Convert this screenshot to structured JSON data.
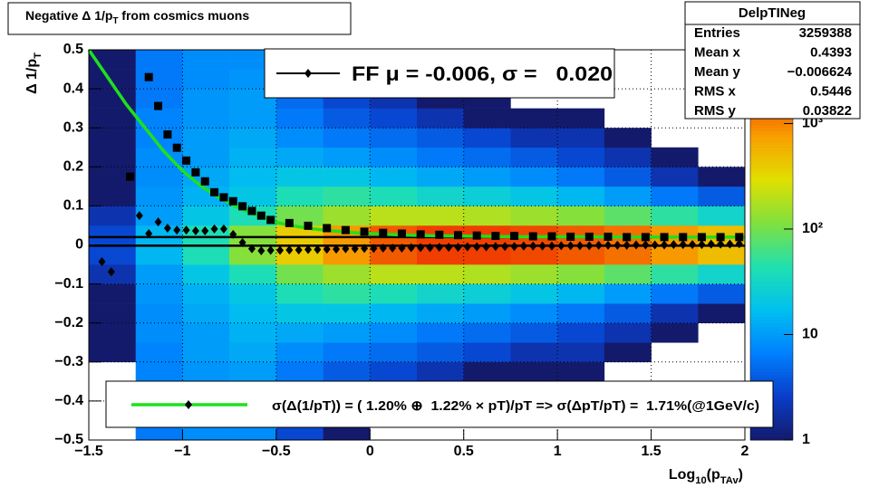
{
  "chart_data": {
    "type": "hist2d",
    "title_parts": [
      {
        "text": "Negative Δ 1/p"
      },
      {
        "text": "T",
        "style": "sub"
      },
      {
        "text": " from cosmics muons"
      }
    ],
    "xlabel_parts": [
      {
        "text": "Log"
      },
      {
        "text": "10",
        "style": "sub"
      },
      {
        "text": "(p"
      },
      {
        "text": "TAv",
        "style": "sub"
      },
      {
        "text": ")"
      }
    ],
    "ylabel_parts": [
      {
        "text": "Δ 1/p"
      },
      {
        "text": "T",
        "style": "sub"
      }
    ],
    "xlim": [
      -1.5,
      2
    ],
    "ylim": [
      -0.5,
      0.5
    ],
    "xticks": [
      {
        "value": -1.5,
        "label": "−1.5"
      },
      {
        "value": -1,
        "label": "−1"
      },
      {
        "value": -0.5,
        "label": "−0.5"
      },
      0,
      0.5,
      1,
      1.5,
      2
    ],
    "yticks": [
      {
        "value": -0.5,
        "label": "−0.5"
      },
      {
        "value": -0.4,
        "label": "−0.4"
      },
      {
        "value": -0.3,
        "label": "−0.3"
      },
      {
        "value": -0.2,
        "label": "−0.2"
      },
      {
        "value": -0.1,
        "label": "−0.1"
      },
      0,
      0.1,
      0.2,
      0.3,
      0.4,
      0.5
    ],
    "grid": true,
    "x_bins": [
      -1.5,
      -1.25,
      -1,
      -0.75,
      -0.5,
      -0.25,
      0,
      0.25,
      0.5,
      0.75,
      1,
      1.25,
      1.5,
      1.75,
      2
    ],
    "y_bins": [
      -0.5,
      -0.45,
      -0.4,
      -0.35,
      -0.3,
      -0.25,
      -0.2,
      -0.15,
      -0.1,
      -0.05,
      0,
      0.05,
      0.1,
      0.15,
      0.2,
      0.25,
      0.3,
      0.35,
      0.4,
      0.45,
      0.5
    ],
    "counts": [
      [
        0,
        0,
        0,
        0,
        1,
        1,
        1,
        1,
        2,
        3,
        3,
        2,
        1,
        1,
        1,
        1,
        1,
        1,
        1,
        1
      ],
      [
        6,
        6,
        6,
        7,
        7,
        8,
        8,
        9,
        10,
        15,
        15,
        10,
        9,
        8,
        8,
        7,
        7,
        6,
        6,
        6
      ],
      [
        8,
        8,
        9,
        9,
        10,
        10,
        12,
        14,
        20,
        40,
        40,
        20,
        14,
        12,
        10,
        10,
        9,
        9,
        8,
        8
      ],
      [
        8,
        9,
        10,
        10,
        12,
        14,
        16,
        20,
        40,
        120,
        120,
        40,
        20,
        16,
        14,
        12,
        10,
        10,
        9,
        8
      ],
      [
        3,
        4,
        5,
        6,
        8,
        12,
        20,
        40,
        100,
        400,
        400,
        100,
        40,
        20,
        12,
        8,
        6,
        5,
        4,
        3
      ],
      [
        1,
        2,
        3,
        4,
        6,
        10,
        20,
        50,
        150,
        800,
        800,
        150,
        50,
        20,
        10,
        6,
        4,
        3,
        2,
        1
      ],
      [
        0,
        1,
        2,
        3,
        5,
        8,
        15,
        40,
        200,
        1500,
        1500,
        200,
        40,
        15,
        8,
        5,
        3,
        2,
        1,
        0
      ],
      [
        0,
        0,
        1,
        2,
        4,
        6,
        12,
        30,
        200,
        2000,
        2000,
        200,
        30,
        12,
        6,
        4,
        2,
        1,
        0,
        0
      ],
      [
        0,
        0,
        1,
        1,
        3,
        5,
        10,
        25,
        180,
        2000,
        2000,
        180,
        25,
        10,
        5,
        3,
        1,
        1,
        0,
        0
      ],
      [
        0,
        0,
        0,
        1,
        2,
        4,
        8,
        20,
        150,
        1800,
        1800,
        150,
        20,
        8,
        4,
        2,
        1,
        0,
        0,
        0
      ],
      [
        0,
        0,
        0,
        1,
        2,
        3,
        6,
        15,
        120,
        1500,
        1500,
        120,
        15,
        6,
        3,
        2,
        1,
        0,
        0,
        0
      ],
      [
        0,
        0,
        0,
        0,
        1,
        2,
        4,
        10,
        80,
        1200,
        1200,
        80,
        10,
        4,
        2,
        1,
        0,
        0,
        0,
        0
      ],
      [
        0,
        0,
        0,
        0,
        0,
        1,
        2,
        6,
        50,
        800,
        800,
        50,
        6,
        2,
        1,
        0,
        0,
        0,
        0,
        0
      ],
      [
        0,
        0,
        0,
        0,
        0,
        0,
        1,
        4,
        30,
        500,
        500,
        30,
        4,
        1,
        0,
        0,
        0,
        0,
        0,
        0
      ]
    ],
    "zlim": [
      1,
      5000
    ],
    "log_z": true,
    "zticks": [
      1,
      10,
      {
        "value": 100,
        "label": "10²"
      },
      {
        "value": 1000,
        "label": "10³"
      }
    ],
    "palette": [
      "#141a6b",
      "#0a3cc8",
      "#0080ff",
      "#00c0f0",
      "#20e0b0",
      "#80e040",
      "#e0e000",
      "#f8a000",
      "#f04000",
      "#c80000"
    ],
    "hlines": {
      "values": [
        0.02,
        -0.002
      ],
      "color": "#000000"
    },
    "series": [
      {
        "name": "FF μ = -0.006, σ =   0.020",
        "marker": "diamond",
        "color": "#000000",
        "x": [
          -1.43,
          -1.38,
          -1.28,
          -1.23,
          -1.18,
          -1.13,
          -1.08,
          -1.03,
          -0.98,
          -0.93,
          -0.88,
          -0.83,
          -0.78,
          -0.73,
          -0.68,
          -0.63,
          -0.58,
          -0.53,
          -0.48,
          -0.43,
          -0.38,
          -0.33,
          -0.28,
          -0.23,
          -0.18,
          -0.13,
          -0.08,
          -0.03,
          0.02,
          0.07,
          0.12,
          0.17,
          0.22,
          0.27,
          0.32,
          0.37,
          0.42,
          0.47,
          0.52,
          0.57,
          0.62,
          0.67,
          0.72,
          0.77,
          0.82,
          0.87,
          0.92,
          0.97,
          1.02,
          1.07,
          1.12,
          1.17,
          1.22,
          1.27,
          1.32,
          1.37,
          1.42,
          1.47,
          1.52,
          1.57,
          1.62,
          1.67,
          1.72,
          1.77,
          1.82,
          1.87,
          1.92,
          1.97
        ],
        "values": [
          -0.043,
          -0.069,
          0.175,
          0.075,
          0.029,
          0.059,
          0.043,
          0.038,
          0.038,
          0.036,
          0.036,
          0.041,
          0.041,
          0.027,
          0.006,
          -0.01,
          -0.015,
          -0.014,
          -0.014,
          -0.013,
          -0.013,
          -0.012,
          -0.012,
          -0.011,
          -0.011,
          -0.01,
          -0.01,
          -0.009,
          -0.009,
          -0.008,
          -0.008,
          -0.008,
          -0.007,
          -0.007,
          -0.007,
          -0.006,
          -0.006,
          -0.006,
          -0.005,
          -0.005,
          -0.005,
          -0.004,
          -0.004,
          -0.004,
          -0.003,
          -0.003,
          -0.003,
          -0.003,
          -0.002,
          -0.002,
          -0.002,
          -0.002,
          -0.001,
          -0.001,
          -0.001,
          -0.001,
          0,
          0,
          0,
          0,
          0.001,
          0.001,
          0.001,
          0.001,
          0.002,
          0.002,
          0.002,
          0.003
        ]
      },
      {
        "marker": "square",
        "color": "#000000",
        "x": [
          -1.28,
          -1.18,
          -1.13,
          -1.08,
          -1.03,
          -0.98,
          -0.93,
          -0.88,
          -0.83,
          -0.78,
          -0.73,
          -0.68,
          -0.63,
          -0.58,
          -0.53,
          -0.43,
          -0.33,
          -0.23,
          -0.13,
          -0.03,
          0.07,
          0.17,
          0.27,
          0.37,
          0.47,
          0.57,
          0.67,
          0.77,
          0.87,
          0.97,
          1.07,
          1.17,
          1.27,
          1.37,
          1.47,
          1.57,
          1.67,
          1.77,
          1.87,
          1.97
        ],
        "values": [
          0.175,
          0.43,
          0.356,
          0.283,
          0.249,
          0.216,
          0.186,
          0.163,
          0.135,
          0.122,
          0.112,
          0.099,
          0.087,
          0.075,
          0.064,
          0.056,
          0.049,
          0.043,
          0.038,
          0.034,
          0.031,
          0.029,
          0.027,
          0.026,
          0.025,
          0.024,
          0.023,
          0.023,
          0.022,
          0.022,
          0.021,
          0.021,
          0.021,
          0.02,
          0.02,
          0.02,
          0.02,
          0.02,
          0.02,
          0.02
        ]
      },
      {
        "name": "σ(Δ(1/pT)) = ( 1.20% ⊕  1.22% × pT)/pT => σ(ΔpT/pT) =  1.71%(@1GeV/c)",
        "marker": "line",
        "color": "#1ee01e",
        "x": [
          -1.5,
          -1.4,
          -1.3,
          -1.2,
          -1.1,
          -1,
          -0.9,
          -0.8,
          -0.7,
          -0.6,
          -0.5,
          -0.4,
          -0.3,
          -0.2,
          -0.1,
          0,
          0.2,
          0.4,
          0.6,
          0.8,
          1,
          1.5,
          2
        ],
        "values": [
          0.5,
          0.43,
          0.36,
          0.3,
          0.24,
          0.19,
          0.15,
          0.12,
          0.095,
          0.075,
          0.058,
          0.048,
          0.041,
          0.036,
          0.032,
          0.029,
          0.025,
          0.023,
          0.022,
          0.021,
          0.021,
          0.02,
          0.02
        ]
      }
    ],
    "stats": {
      "title": "DelpTINeg",
      "rows": [
        [
          "Entries",
          "3259388"
        ],
        [
          "Mean x",
          "0.4393"
        ],
        [
          "Mean y",
          "−0.006624"
        ],
        [
          "RMS x",
          "0.5446"
        ],
        [
          "RMS y",
          "0.03822"
        ]
      ]
    }
  }
}
